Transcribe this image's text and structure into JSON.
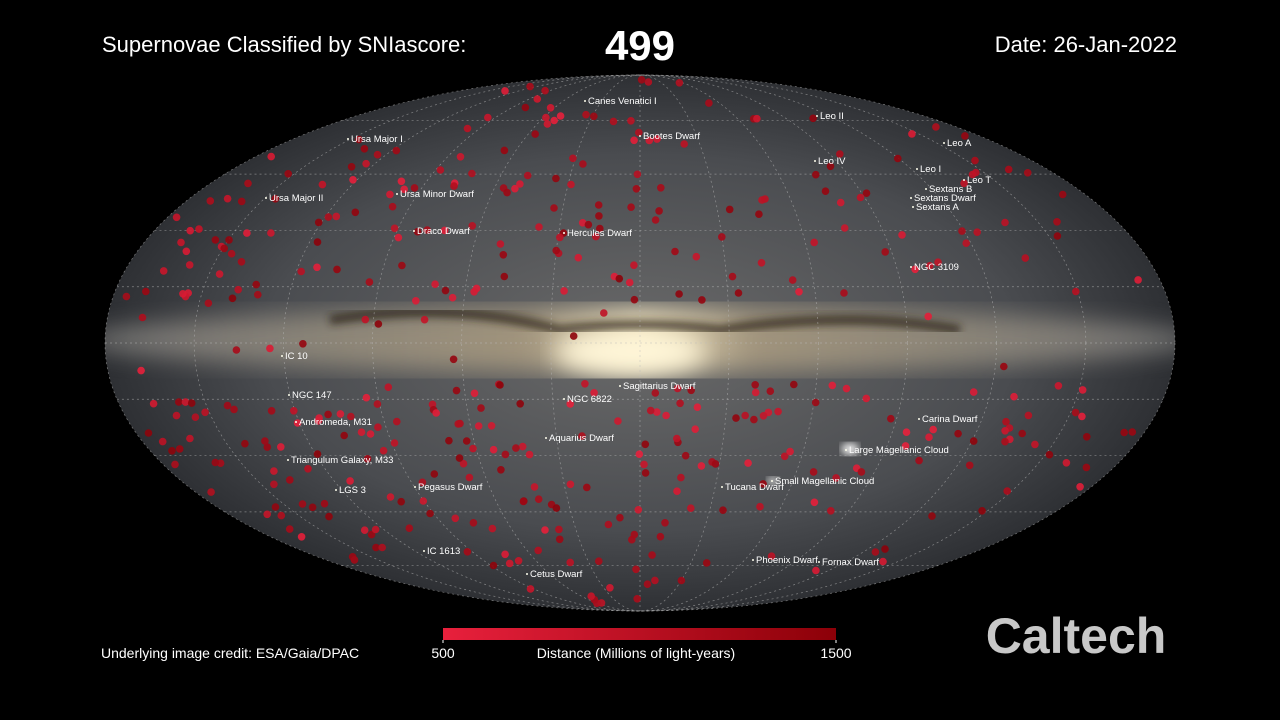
{
  "header": {
    "label": "Supernovae Classified by SNIascore:",
    "count": 499,
    "date": "Date: 26-Jan-2022"
  },
  "labels": [
    "Canes Venatici I",
    "Ursa Major I",
    "Bootes Dwarf",
    "Leo II",
    "Leo A",
    "Leo IV",
    "Leo I",
    "Leo T",
    "Sextans B",
    "Sextans Dwarf",
    "Sextans A",
    "Ursa Major II",
    "Ursa Minor Dwarf",
    "Draco Dwarf",
    "Hercules Dwarf",
    "NGC 3109",
    "IC 10",
    "Sagittarius Dwarf",
    "NGC 147",
    "NGC 6822",
    "Andromeda, M31",
    "Carina Dwarf",
    "Aquarius Dwarf",
    "Large Magellanic Cloud",
    "Triangulum Galaxy, M33",
    "Small Magellanic Cloud",
    "Tucana Dwarf",
    "Pegasus Dwarf",
    "LGS 3",
    "IC 1613",
    "Phoenix Dwarf",
    "Fornax Dwarf",
    "Cetus Dwarf"
  ],
  "colorbar": {
    "title": "Distance (Millions of light-years)",
    "range": [
      500,
      1500
    ],
    "ticks": [
      500,
      1500
    ]
  },
  "footer": {
    "credit": "Underlying image credit: ESA/Gaia/DPAC",
    "logo": "Caltech"
  }
}
